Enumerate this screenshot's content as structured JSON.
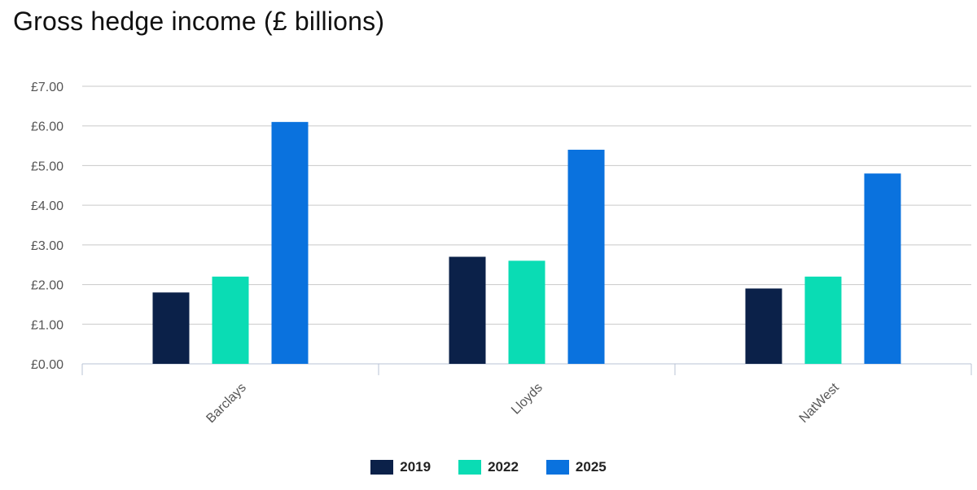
{
  "chart_data": {
    "type": "bar",
    "title": "Gross hedge income (£ billions)",
    "categories": [
      "Barclays",
      "Lloyds",
      "NatWest"
    ],
    "series": [
      {
        "name": "2019",
        "color": "#0b2149",
        "values": [
          1.8,
          2.7,
          1.9
        ]
      },
      {
        "name": "2022",
        "color": "#0adcb4",
        "values": [
          2.2,
          2.6,
          2.2
        ]
      },
      {
        "name": "2025",
        "color": "#0a72de",
        "values": [
          6.1,
          5.4,
          4.8
        ]
      }
    ],
    "ylim": [
      0,
      7
    ],
    "yticks": [
      0,
      1,
      2,
      3,
      4,
      5,
      6,
      7
    ],
    "ytick_labels": [
      "£0.00",
      "£1.00",
      "£2.00",
      "£3.00",
      "£4.00",
      "£5.00",
      "£6.00",
      "£7.00"
    ],
    "xlabel": "",
    "ylabel": "",
    "grid": true,
    "legend_position": "bottom-center"
  }
}
